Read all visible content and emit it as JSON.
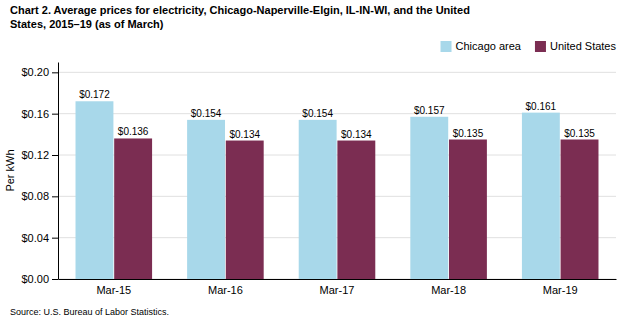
{
  "chart_data": {
    "type": "bar",
    "title": "Chart 2. Average prices for electricity, Chicago-Naperville-Elgin, IL-IN-WI, and the United\nStates, 2015–19  (as of March)",
    "ylabel": "Per kWh",
    "source": "Source: U.S. Bureau of Labor Statistics.",
    "categories": [
      "Mar-15",
      "Mar-16",
      "Mar-17",
      "Mar-18",
      "Mar-19"
    ],
    "series": [
      {
        "name": "Chicago area",
        "color": "#A8D8EA",
        "values": [
          0.172,
          0.154,
          0.154,
          0.157,
          0.161
        ],
        "value_labels": [
          "$0.172",
          "$0.154",
          "$0.154",
          "$0.157",
          "$0.161"
        ]
      },
      {
        "name": "United States",
        "color": "#7B2D52",
        "values": [
          0.136,
          0.134,
          0.134,
          0.135,
          0.135
        ],
        "value_labels": [
          "$0.136",
          "$0.134",
          "$0.134",
          "$0.135",
          "$0.135"
        ]
      }
    ],
    "ylim": [
      0,
      0.21
    ],
    "yticks": [
      {
        "value": 0.0,
        "label": "$0.00"
      },
      {
        "value": 0.04,
        "label": "$0.04"
      },
      {
        "value": 0.08,
        "label": "$0.08"
      },
      {
        "value": 0.12,
        "label": "$0.12"
      },
      {
        "value": 0.16,
        "label": "$0.16"
      },
      {
        "value": 0.2,
        "label": "$0.20"
      }
    ],
    "grid": true,
    "legend": "upper right",
    "data_labels": true
  }
}
